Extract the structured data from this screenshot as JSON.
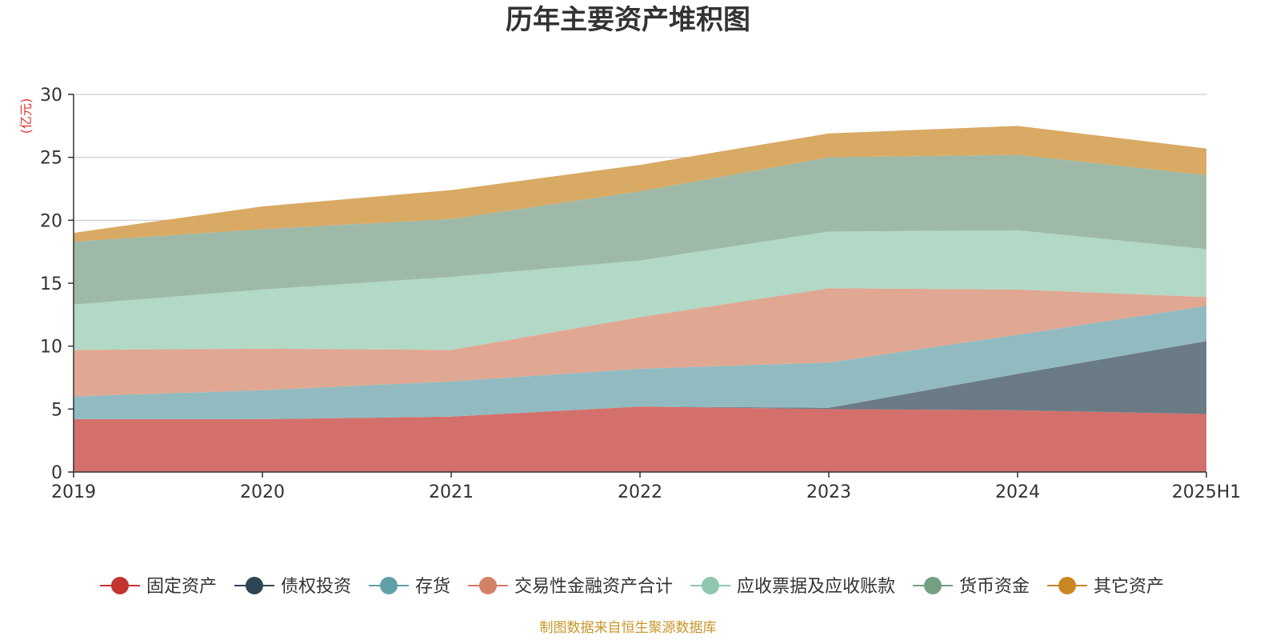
{
  "chart_data": {
    "type": "area",
    "stacked": true,
    "title": "历年主要资产堆积图",
    "ylabel": "(亿元)",
    "ylim": [
      0,
      30
    ],
    "yticks": [
      0,
      5,
      10,
      15,
      20,
      25,
      30
    ],
    "categories": [
      "2019",
      "2020",
      "2021",
      "2022",
      "2023",
      "2024",
      "2025H1"
    ],
    "grid": true,
    "legend_position": "bottom",
    "series": [
      {
        "name": "固定资产",
        "legend_color": "#c23531",
        "fill": "#d4706b",
        "values": [
          4.2,
          4.2,
          4.4,
          5.2,
          5.0,
          4.9,
          4.6
        ]
      },
      {
        "name": "债权投资",
        "legend_color": "#2f4554",
        "fill": "#6b7b86",
        "values": [
          0.0,
          0.0,
          0.0,
          0.0,
          0.1,
          2.9,
          5.8
        ]
      },
      {
        "name": "存货",
        "legend_color": "#61a0a8",
        "fill": "#91bbc1",
        "values": [
          1.8,
          2.3,
          2.8,
          3.0,
          3.6,
          3.1,
          2.8
        ]
      },
      {
        "name": "交易性金融资产合计",
        "legend_color": "#d48265",
        "fill": "#e0a792",
        "values": [
          3.7,
          3.3,
          2.5,
          4.1,
          5.9,
          3.6,
          0.7
        ]
      },
      {
        "name": "应收票据及应收账款",
        "legend_color": "#91c7ae",
        "fill": "#b2d8c6",
        "values": [
          3.6,
          4.7,
          5.8,
          4.5,
          4.5,
          4.7,
          3.8
        ]
      },
      {
        "name": "货币资金",
        "legend_color": "#749f83",
        "fill": "#9eb9a7",
        "values": [
          5.0,
          4.8,
          4.6,
          5.5,
          5.9,
          6.0,
          5.9
        ]
      },
      {
        "name": "其它资产",
        "legend_color": "#ca8622",
        "fill": "#d9aa64",
        "values": [
          0.7,
          1.8,
          2.3,
          2.1,
          1.9,
          2.3,
          2.1
        ]
      }
    ],
    "source": "制图数据来自恒生聚源数据库",
    "colors": {
      "title": "#333333",
      "unit_label": "#e03131",
      "source": "#c8962a",
      "axis": "#333333",
      "grid": "#cccccc"
    }
  }
}
